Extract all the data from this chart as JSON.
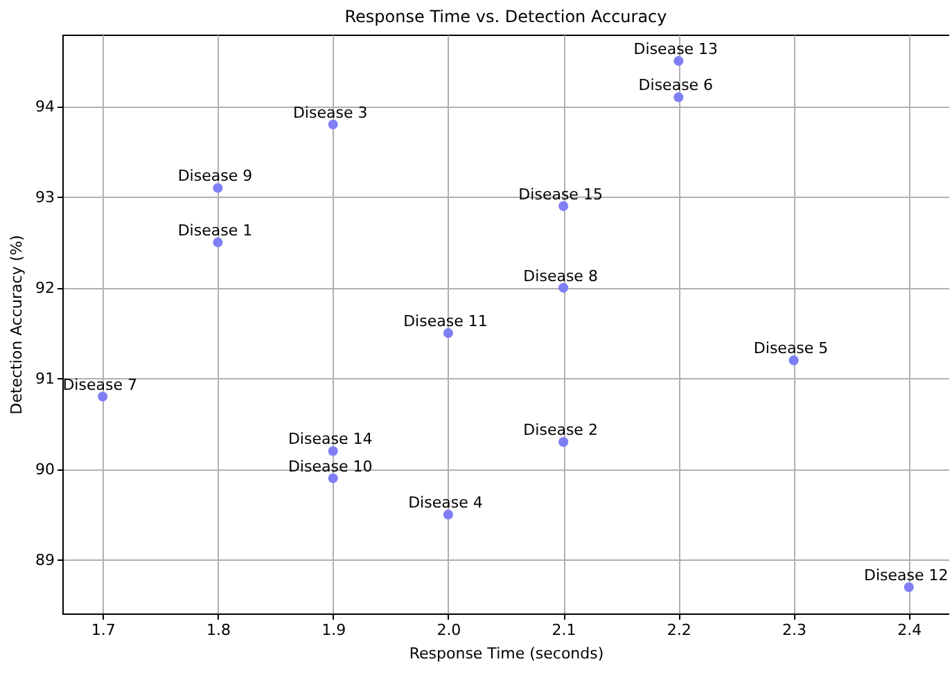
{
  "chart_data": {
    "type": "scatter",
    "title": "Response Time vs. Detection Accuracy",
    "xlabel": "Response Time (seconds)",
    "ylabel": "Detection Accuracy (%)",
    "x": [
      1.8,
      2.1,
      1.9,
      2.0,
      2.3,
      2.2,
      1.7,
      2.1,
      1.8,
      1.9,
      2.0,
      2.4,
      2.2,
      1.9,
      2.1
    ],
    "series": [
      {
        "color": "#7f7ff5",
        "values": [
          92.5,
          90.3,
          93.8,
          89.5,
          91.2,
          94.1,
          90.8,
          92.0,
          93.1,
          89.9,
          91.5,
          88.7,
          94.5,
          90.2,
          92.9
        ]
      }
    ],
    "annotations": [
      {
        "text": "Disease 1",
        "x": 1.8,
        "y": 92.5
      },
      {
        "text": "Disease 2",
        "x": 2.1,
        "y": 90.3
      },
      {
        "text": "Disease 3",
        "x": 1.9,
        "y": 93.8
      },
      {
        "text": "Disease 4",
        "x": 2.0,
        "y": 89.5
      },
      {
        "text": "Disease 5",
        "x": 2.3,
        "y": 91.2
      },
      {
        "text": "Disease 6",
        "x": 2.2,
        "y": 94.1
      },
      {
        "text": "Disease 7",
        "x": 1.7,
        "y": 90.8
      },
      {
        "text": "Disease 8",
        "x": 2.1,
        "y": 92.0
      },
      {
        "text": "Disease 9",
        "x": 1.8,
        "y": 93.1
      },
      {
        "text": "Disease 10",
        "x": 1.9,
        "y": 89.9
      },
      {
        "text": "Disease 11",
        "x": 2.0,
        "y": 91.5
      },
      {
        "text": "Disease 12",
        "x": 2.4,
        "y": 88.7
      },
      {
        "text": "Disease 13",
        "x": 2.2,
        "y": 94.5
      },
      {
        "text": "Disease 14",
        "x": 1.9,
        "y": 90.2
      },
      {
        "text": "Disease 15",
        "x": 2.1,
        "y": 92.9
      }
    ],
    "xlim": [
      1.665,
      2.435
    ],
    "ylim": [
      88.41,
      94.79
    ],
    "xticks": [
      1.7,
      1.8,
      1.9,
      {
        "value": 2,
        "label": "2.0"
      },
      2.1,
      2.2,
      2.3,
      2.4
    ],
    "yticks": [
      89,
      90,
      91,
      92,
      93,
      94
    ],
    "grid": true,
    "marker": "circle"
  }
}
